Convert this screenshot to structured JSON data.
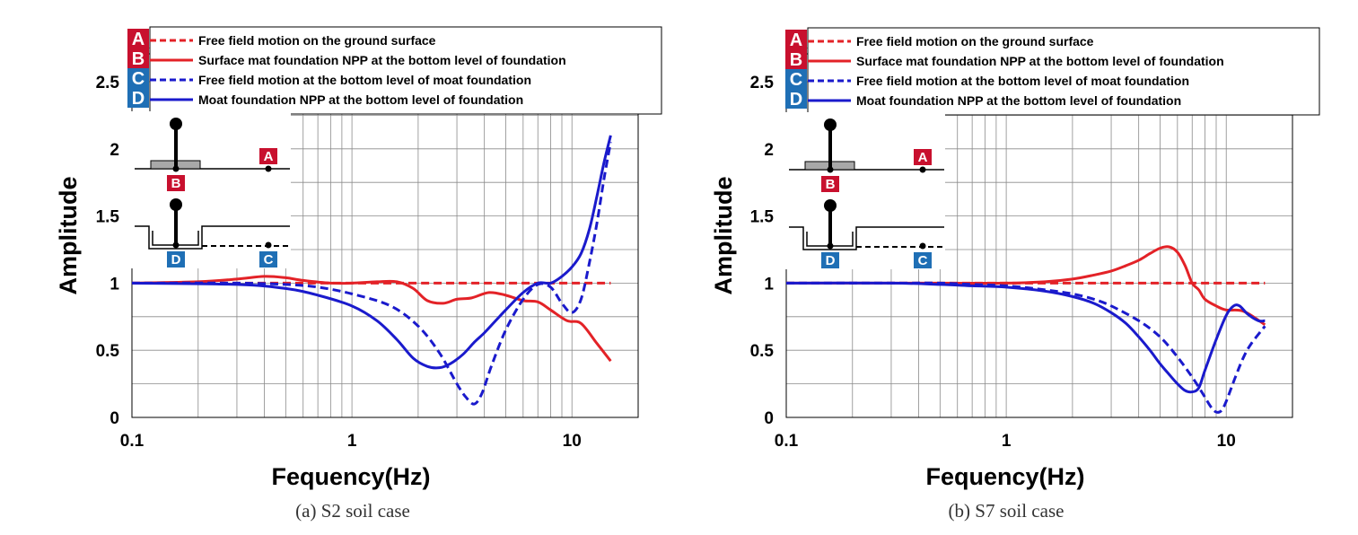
{
  "colors": {
    "red": "#e32227",
    "blue": "#1a1acc",
    "badge_red": "#c8102e",
    "badge_blue": "#1f6fb5",
    "grid": "#8a8a8a"
  },
  "legend": [
    {
      "key": "A",
      "text": "Free field motion on the ground surface",
      "color": "red",
      "dash": true
    },
    {
      "key": "B",
      "text": "Surface mat foundation NPP at the bottom level of foundation",
      "color": "red",
      "dash": false
    },
    {
      "key": "C",
      "text": "Free field motion at the bottom level of moat foundation",
      "color": "blue",
      "dash": true
    },
    {
      "key": "D",
      "text": "Moat foundation NPP at the bottom level of foundation",
      "color": "blue",
      "dash": false
    }
  ],
  "inset": {
    "A": "A",
    "B": "B",
    "C": "C",
    "D": "D"
  },
  "chart_data": [
    {
      "type": "line",
      "caption": "(a) S2 soil case",
      "xlabel": "Fequency(Hz)",
      "ylabel": "Amplitude",
      "xscale": "log",
      "xlim": [
        0.1,
        20
      ],
      "ylim": [
        0,
        2.5
      ],
      "yticks": [
        0,
        0.5,
        1,
        1.5,
        2,
        2.5
      ],
      "yticklabels": [
        "0",
        "0.5",
        "1",
        "1.5",
        "2",
        "2.5"
      ],
      "xticks": [
        0.1,
        1,
        10
      ],
      "xticklabels": [
        "0.1",
        "1",
        "10"
      ],
      "series": [
        {
          "key": "A",
          "name": "Free field motion on the ground surface",
          "x": [
            0.1,
            15
          ],
          "y": [
            1.0,
            1.0
          ]
        },
        {
          "key": "B",
          "name": "Surface mat foundation NPP at the bottom level of foundation",
          "x": [
            0.1,
            0.2,
            0.3,
            0.4,
            0.5,
            0.6,
            0.8,
            1.0,
            1.3,
            1.6,
            1.9,
            2.2,
            2.6,
            3.0,
            3.5,
            4.2,
            5.0,
            6.0,
            7.0,
            8.0,
            9.5,
            11,
            13,
            15
          ],
          "y": [
            1.0,
            1.01,
            1.03,
            1.05,
            1.04,
            1.02,
            1.0,
            1.0,
            1.01,
            1.01,
            0.96,
            0.87,
            0.85,
            0.88,
            0.89,
            0.93,
            0.91,
            0.87,
            0.86,
            0.8,
            0.72,
            0.7,
            0.55,
            0.42
          ]
        },
        {
          "key": "C",
          "name": "Free field motion at the bottom level of moat foundation",
          "x": [
            0.1,
            0.3,
            0.5,
            0.7,
            1.0,
            1.5,
            2.0,
            2.5,
            3.0,
            3.3,
            3.6,
            3.9,
            4.3,
            5.0,
            6.0,
            7.0,
            8.0,
            9.0,
            10.0,
            11,
            12,
            13,
            14,
            15
          ],
          "y": [
            1.0,
            1.0,
            0.99,
            0.97,
            0.92,
            0.83,
            0.68,
            0.48,
            0.25,
            0.15,
            0.1,
            0.18,
            0.38,
            0.65,
            0.88,
            0.99,
            0.97,
            0.85,
            0.78,
            0.88,
            1.15,
            1.45,
            1.78,
            2.05
          ]
        },
        {
          "key": "D",
          "name": "Moat foundation NPP at the bottom level of foundation",
          "x": [
            0.1,
            0.3,
            0.5,
            0.7,
            1.0,
            1.3,
            1.6,
            1.9,
            2.2,
            2.5,
            2.8,
            3.2,
            3.6,
            4.0,
            4.5,
            5.0,
            6.0,
            7.0,
            8.0,
            9.0,
            10.0,
            11,
            12,
            13,
            14,
            15
          ],
          "y": [
            1.0,
            0.99,
            0.96,
            0.91,
            0.83,
            0.72,
            0.58,
            0.44,
            0.38,
            0.37,
            0.4,
            0.47,
            0.56,
            0.63,
            0.72,
            0.8,
            0.93,
            1.0,
            1.0,
            1.05,
            1.12,
            1.22,
            1.4,
            1.65,
            1.9,
            2.1
          ]
        }
      ]
    },
    {
      "type": "line",
      "caption": "(b) S7 soil case",
      "xlabel": "Fequency(Hz)",
      "ylabel": "Amplitude",
      "xscale": "log",
      "xlim": [
        0.1,
        20
      ],
      "ylim": [
        0,
        2.5
      ],
      "yticks": [
        0,
        0.5,
        1,
        1.5,
        2,
        2.5
      ],
      "yticklabels": [
        "0",
        "0.5",
        "1",
        "1.5",
        "2",
        "2.5"
      ],
      "xticks": [
        0.1,
        1,
        10
      ],
      "xticklabels": [
        "0.1",
        "1",
        "10"
      ],
      "series": [
        {
          "key": "A",
          "name": "Free field motion on the ground surface",
          "x": [
            0.1,
            15
          ],
          "y": [
            1.0,
            1.0
          ]
        },
        {
          "key": "B",
          "name": "Surface mat foundation NPP at the bottom level of foundation",
          "x": [
            0.1,
            0.3,
            0.5,
            1.0,
            1.5,
            2.0,
            2.5,
            3.0,
            3.5,
            4.0,
            4.5,
            5.0,
            5.5,
            6.0,
            6.5,
            7.0,
            7.5,
            8.0,
            9.0,
            10.0,
            12,
            15
          ],
          "y": [
            1.0,
            1.0,
            1.0,
            1.0,
            1.01,
            1.03,
            1.06,
            1.09,
            1.13,
            1.17,
            1.22,
            1.26,
            1.27,
            1.23,
            1.13,
            1.0,
            0.95,
            0.88,
            0.83,
            0.8,
            0.79,
            0.69
          ]
        },
        {
          "key": "C",
          "name": "Free field motion at the bottom level of moat foundation",
          "x": [
            0.1,
            0.3,
            0.5,
            0.7,
            1.0,
            1.5,
            2.0,
            2.5,
            3.0,
            4.0,
            5.0,
            6.0,
            7.0,
            7.8,
            8.5,
            9.0,
            9.5,
            10.0,
            11,
            12,
            13,
            15
          ],
          "y": [
            1.0,
            1.0,
            1.0,
            0.99,
            0.98,
            0.95,
            0.92,
            0.88,
            0.83,
            0.72,
            0.6,
            0.45,
            0.3,
            0.18,
            0.08,
            0.04,
            0.05,
            0.12,
            0.3,
            0.45,
            0.55,
            0.68
          ]
        },
        {
          "key": "D",
          "name": "Moat foundation NPP at the bottom level of foundation",
          "x": [
            0.1,
            0.3,
            0.5,
            0.7,
            1.0,
            1.5,
            2.0,
            2.5,
            3.0,
            3.5,
            4.0,
            4.5,
            5.0,
            5.5,
            6.0,
            6.5,
            7.0,
            7.5,
            8.0,
            9.0,
            10.0,
            10.8,
            11.5,
            12.5,
            14,
            15
          ],
          "y": [
            1.0,
            1.0,
            0.99,
            0.98,
            0.97,
            0.94,
            0.9,
            0.85,
            0.78,
            0.7,
            0.6,
            0.5,
            0.4,
            0.32,
            0.25,
            0.2,
            0.19,
            0.22,
            0.35,
            0.58,
            0.76,
            0.83,
            0.83,
            0.77,
            0.72,
            0.72
          ]
        }
      ]
    }
  ]
}
